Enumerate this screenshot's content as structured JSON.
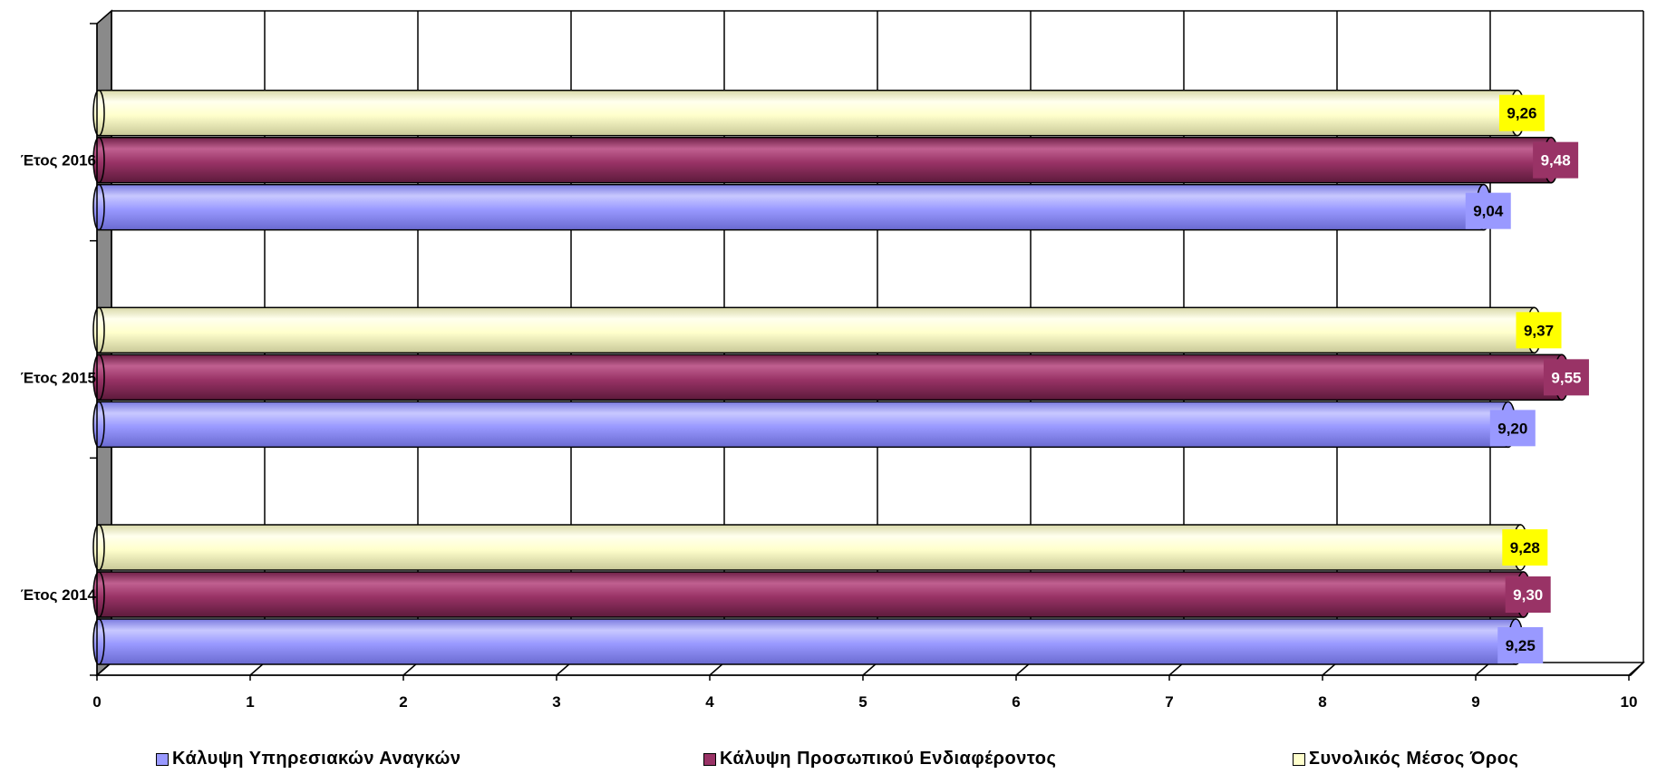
{
  "chart_data": {
    "type": "bar",
    "orientation": "horizontal",
    "categories": [
      "Έτος 2014",
      "Έτος 2015",
      "Έτος 2016"
    ],
    "series": [
      {
        "name": "Κάλυψη Υπηρεσιακών Αναγκών",
        "values": [
          "9,25",
          "9,20",
          "9,04"
        ],
        "numeric": [
          9.25,
          9.2,
          9.04
        ],
        "color": "#9999ff",
        "label_bg": "#9999ff",
        "label_color": "#000000"
      },
      {
        "name": "Κάλυψη Προσωπικού Ενδιαφέροντος",
        "values": [
          "9,30",
          "9,55",
          "9,48"
        ],
        "numeric": [
          9.3,
          9.55,
          9.48
        ],
        "color": "#993366",
        "label_bg": "#993366",
        "label_color": "#ffffff"
      },
      {
        "name": "Συνολικός Μέσος Όρος",
        "values": [
          "9,28",
          "9,37",
          "9,26"
        ],
        "numeric": [
          9.28,
          9.37,
          9.26
        ],
        "color": "#ffffcc",
        "label_bg": "#ffff00",
        "label_color": "#000000"
      }
    ],
    "x_ticks": [
      "0",
      "1",
      "2",
      "3",
      "4",
      "5",
      "6",
      "7",
      "8",
      "9",
      "10"
    ],
    "xlim": [
      0,
      10
    ],
    "grid": true,
    "legend_position": "bottom",
    "style": "3d-cylinder"
  }
}
